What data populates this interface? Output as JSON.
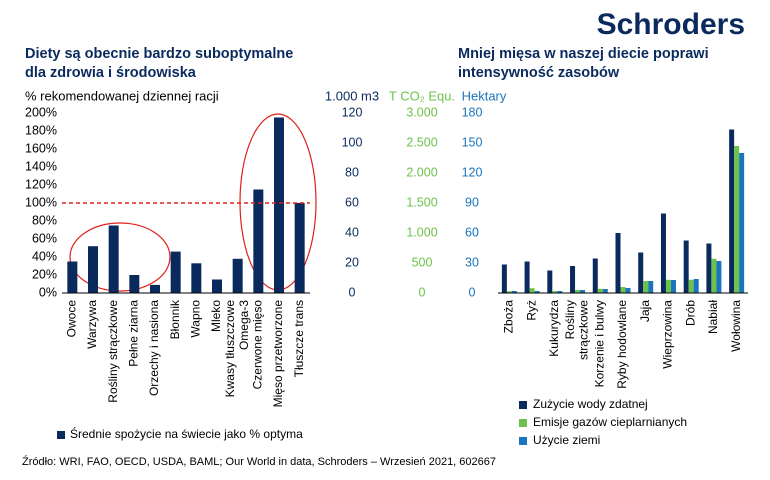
{
  "logo": "Schroders",
  "footer": "Źródło: WRI, FAO, OECD, USDA, BAML; Our World in data, Schroders – Wrzesień 2021, 602667",
  "chart_data": [
    {
      "type": "bar",
      "title": [
        "Diety są obecnie bardzo suboptymalne",
        "dla zdrowia i środowiska"
      ],
      "ylabel": "% rekomendowanej dziennej racji",
      "categories": [
        "Owoce",
        "Warzywa",
        "Rośliny strączkowe",
        "Pełne ziarna",
        "Orzechy i nasiona",
        "Błonnik",
        "Wapno",
        "Mleko",
        "Kwasy tłuszczowe Omega-3",
        "Czerwone mięso",
        "Mięso przetworzone",
        "Tłuszcze trans"
      ],
      "series": [
        {
          "name": "Średnie spożycie na świecie jako % optyma",
          "color": "#0a2a5e",
          "values": [
            35,
            52,
            75,
            20,
            9,
            46,
            33,
            15,
            38,
            115,
            195,
            100
          ]
        }
      ],
      "ylim": [
        0,
        200
      ],
      "yticks": [
        {
          "value": 0,
          "label": "0%"
        },
        {
          "value": 20,
          "label": "20%"
        },
        {
          "value": 40,
          "label": "40%"
        },
        {
          "value": 60,
          "label": "60%"
        },
        {
          "value": 80,
          "label": "80%"
        },
        {
          "value": 100,
          "label": "100%"
        },
        {
          "value": 120,
          "label": "120%"
        },
        {
          "value": 140,
          "label": "140%"
        },
        {
          "value": 160,
          "label": "160%"
        },
        {
          "value": 180,
          "label": "180%"
        },
        {
          "value": 200,
          "label": "200%"
        }
      ],
      "reference_line": 100,
      "reference_color": "#e0201b"
    },
    {
      "type": "bar",
      "title": [
        "Mniej mięsa w naszej diecie poprawi",
        "intensywność zasobów"
      ],
      "ylabel": "1.000 m3",
      "y2label": "T CO₂ Equ.",
      "y3label": "Hektary",
      "categories": [
        "Zboża",
        "Ryż",
        "Kukurydza",
        "Rośliny strączkowe",
        "Korzenie i bulwy",
        "Ryby hodowlane",
        "Jaja",
        "Wieprzowina",
        "Drób",
        "Nabiał",
        "Wołowina"
      ],
      "series": [
        {
          "name": "Zużycie wody zdatnej",
          "color": "#0a2a5e",
          "axis": "y",
          "values": [
            19,
            21,
            15,
            18,
            23,
            40,
            27,
            53,
            35,
            33,
            109
          ]
        },
        {
          "name": "Emisje gazów cieplarnianych",
          "color": "#6cc24a",
          "axis": "y2",
          "values": [
            30,
            80,
            30,
            50,
            70,
            100,
            200,
            220,
            220,
            570,
            2450
          ]
        },
        {
          "name": "Użycie ziemi",
          "color": "#1b75bc",
          "axis": "y3",
          "values": [
            2,
            2,
            2,
            3,
            4,
            5,
            12,
            13,
            14,
            32,
            140
          ]
        }
      ],
      "ylim": [
        0,
        120
      ],
      "yticks": [
        0,
        20,
        40,
        60,
        80,
        100,
        120
      ],
      "y2lim": [
        0,
        3000
      ],
      "y2ticks": [
        0,
        500,
        {
          "value": 1000,
          "label": "1.000"
        },
        {
          "value": 1500,
          "label": "1.500"
        },
        {
          "value": 2000,
          "label": "2.000"
        },
        {
          "value": 2500,
          "label": "2.500"
        },
        {
          "value": 3000,
          "label": "3.000"
        }
      ],
      "y3lim": [
        0,
        180
      ],
      "y3ticks": [
        0,
        30,
        60,
        90,
        120,
        150,
        180
      ]
    }
  ]
}
